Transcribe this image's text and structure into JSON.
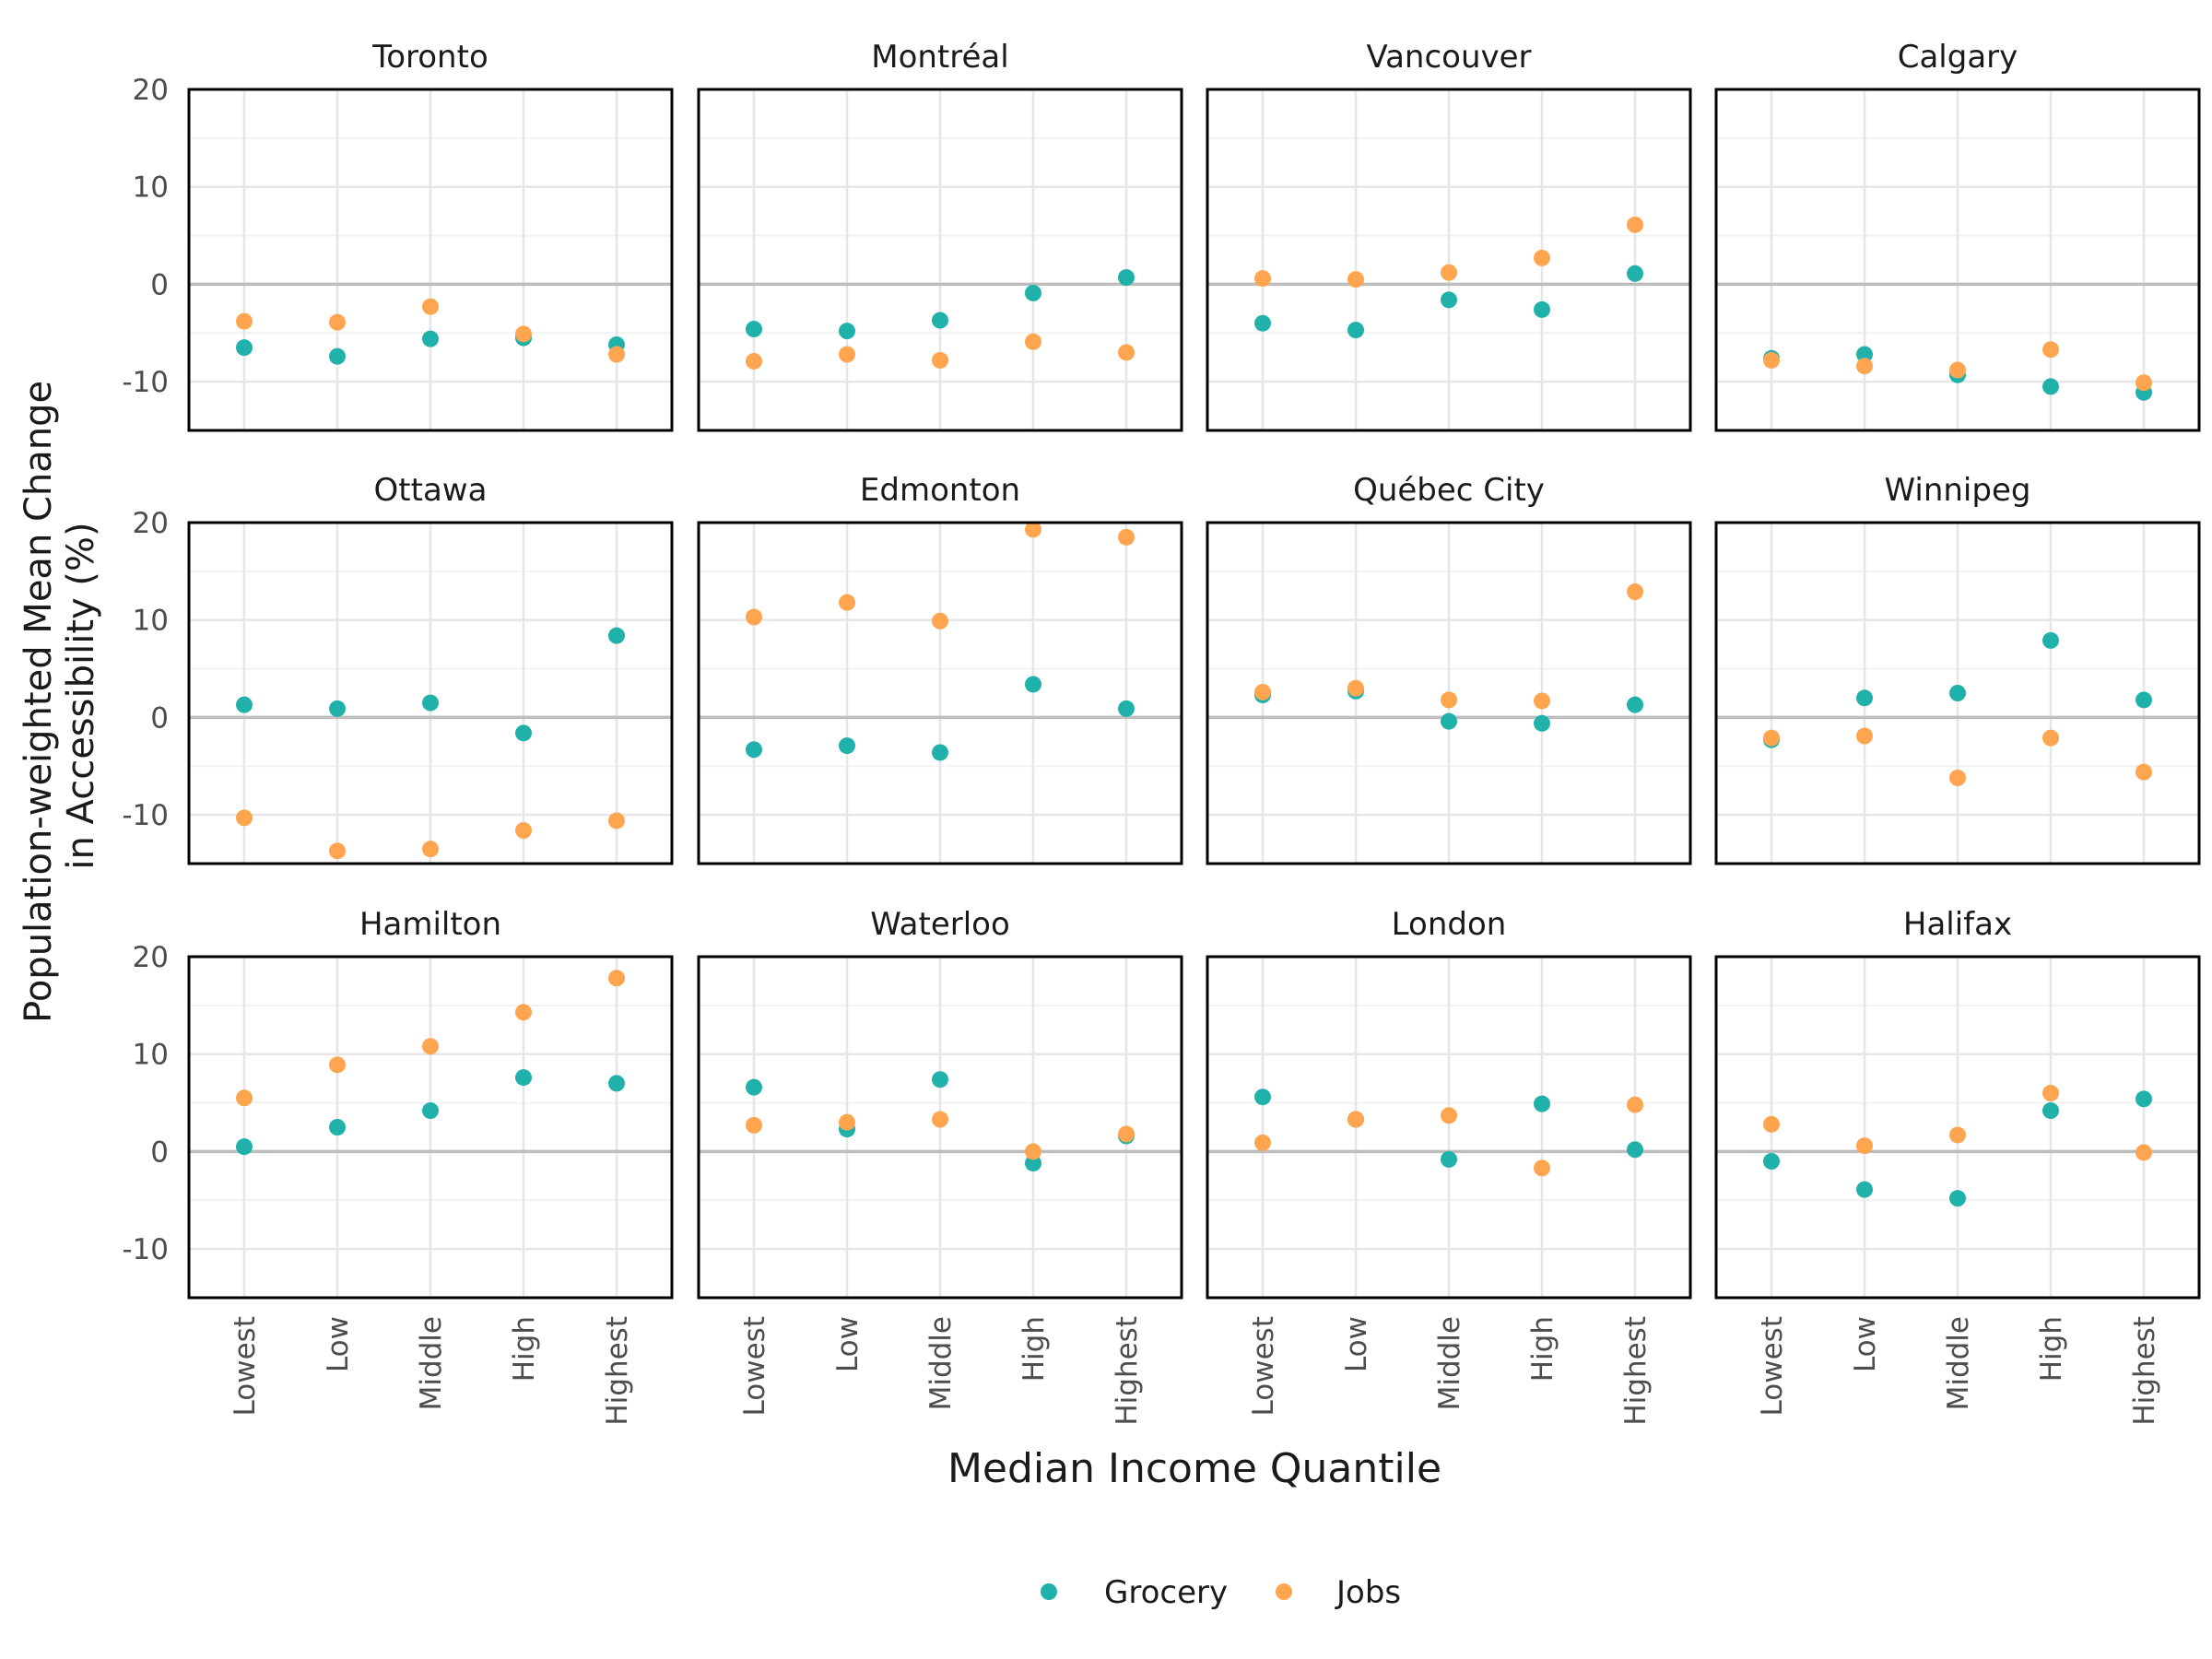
{
  "chart_data": {
    "type": "scatter",
    "facet_layout": "3x4 grid",
    "xlabel": "Median Income Quantile",
    "ylabel": [
      "Population-weighted Mean Change",
      "in Accessibility (%)"
    ],
    "categories": [
      "Lowest",
      "Low",
      "Middle",
      "High",
      "Highest"
    ],
    "y_ticks": [
      20,
      10,
      0,
      -10
    ],
    "ylim": [
      -15,
      20
    ],
    "grid": true,
    "reference_line_y": 0,
    "legend": {
      "position": "bottom"
    },
    "series_defs": [
      {
        "name": "Grocery",
        "color": "#20B2AA"
      },
      {
        "name": "Jobs",
        "color": "#FFA54F"
      }
    ],
    "facets": [
      {
        "title": "Toronto",
        "series": [
          {
            "name": "Grocery",
            "values": [
              -6.5,
              -7.4,
              -5.6,
              -5.5,
              -6.2
            ]
          },
          {
            "name": "Jobs",
            "values": [
              -3.8,
              -3.9,
              -2.3,
              -5.1,
              -7.2
            ]
          }
        ]
      },
      {
        "title": "Montréal",
        "series": [
          {
            "name": "Grocery",
            "values": [
              -4.6,
              -4.8,
              -3.7,
              -0.9,
              0.7
            ]
          },
          {
            "name": "Jobs",
            "values": [
              -7.9,
              -7.2,
              -7.8,
              -5.9,
              -7.0
            ]
          }
        ]
      },
      {
        "title": "Vancouver",
        "series": [
          {
            "name": "Grocery",
            "values": [
              -4.0,
              -4.7,
              -1.6,
              -2.6,
              1.1
            ]
          },
          {
            "name": "Jobs",
            "values": [
              0.6,
              0.5,
              1.2,
              2.7,
              6.1
            ]
          }
        ]
      },
      {
        "title": "Calgary",
        "series": [
          {
            "name": "Grocery",
            "values": [
              -7.6,
              -7.2,
              -9.3,
              -10.5,
              -11.1
            ]
          },
          {
            "name": "Jobs",
            "values": [
              -7.8,
              -8.4,
              -8.8,
              -6.7,
              -10.1
            ]
          }
        ]
      },
      {
        "title": "Ottawa",
        "series": [
          {
            "name": "Grocery",
            "values": [
              1.3,
              0.9,
              1.5,
              -1.6,
              8.4
            ]
          },
          {
            "name": "Jobs",
            "values": [
              -10.3,
              -13.7,
              -13.5,
              -11.6,
              -10.6
            ]
          }
        ]
      },
      {
        "title": "Edmonton",
        "series": [
          {
            "name": "Grocery",
            "values": [
              -3.3,
              -2.9,
              -3.6,
              3.4,
              0.9
            ]
          },
          {
            "name": "Jobs",
            "values": [
              10.3,
              11.8,
              9.9,
              19.3,
              18.5
            ]
          }
        ]
      },
      {
        "title": "Québec City",
        "series": [
          {
            "name": "Grocery",
            "values": [
              2.3,
              2.7,
              -0.4,
              -0.6,
              1.3
            ]
          },
          {
            "name": "Jobs",
            "values": [
              2.6,
              3.0,
              1.8,
              1.7,
              12.9
            ]
          }
        ]
      },
      {
        "title": "Winnipeg",
        "series": [
          {
            "name": "Grocery",
            "values": [
              -2.3,
              2.0,
              2.5,
              7.9,
              1.8
            ]
          },
          {
            "name": "Jobs",
            "values": [
              -2.1,
              -1.9,
              -6.2,
              -2.1,
              -5.6
            ]
          }
        ]
      },
      {
        "title": "Hamilton",
        "series": [
          {
            "name": "Grocery",
            "values": [
              0.5,
              2.5,
              4.2,
              7.6,
              7.0
            ]
          },
          {
            "name": "Jobs",
            "values": [
              5.5,
              8.9,
              10.8,
              14.3,
              17.8
            ]
          }
        ]
      },
      {
        "title": "Waterloo",
        "series": [
          {
            "name": "Grocery",
            "values": [
              6.6,
              2.3,
              7.4,
              -1.2,
              1.6
            ]
          },
          {
            "name": "Jobs",
            "values": [
              2.7,
              3.0,
              3.3,
              0.0,
              1.8
            ]
          }
        ]
      },
      {
        "title": "London",
        "series": [
          {
            "name": "Grocery",
            "values": [
              5.6,
              3.3,
              -0.8,
              4.9,
              0.2
            ]
          },
          {
            "name": "Jobs",
            "values": [
              0.9,
              3.3,
              3.7,
              -1.7,
              4.8
            ]
          }
        ]
      },
      {
        "title": "Halifax",
        "series": [
          {
            "name": "Grocery",
            "values": [
              -1.0,
              -3.9,
              -4.8,
              4.2,
              5.4
            ]
          },
          {
            "name": "Jobs",
            "values": [
              2.8,
              0.6,
              1.7,
              6.0,
              -0.1
            ]
          }
        ]
      }
    ]
  }
}
